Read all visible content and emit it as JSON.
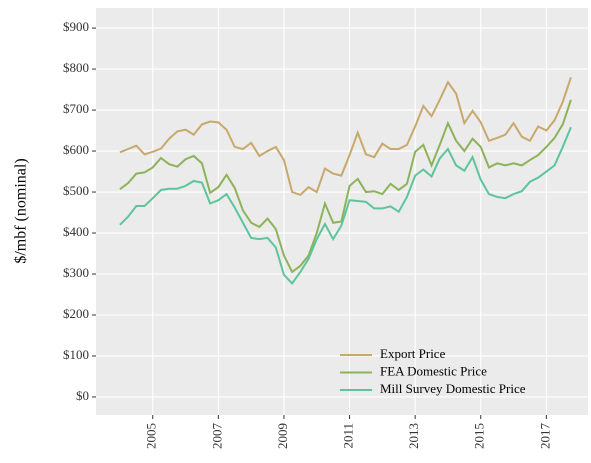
{
  "chart_data": {
    "type": "line",
    "ylabel": "$/mbf (nominal)",
    "x": [
      2004,
      2004.25,
      2004.5,
      2004.75,
      2005,
      2005.25,
      2005.5,
      2005.75,
      2006,
      2006.25,
      2006.5,
      2006.75,
      2007,
      2007.25,
      2007.5,
      2007.75,
      2008,
      2008.25,
      2008.5,
      2008.75,
      2009,
      2009.25,
      2009.5,
      2009.75,
      2010,
      2010.25,
      2010.5,
      2010.75,
      2011,
      2011.25,
      2011.5,
      2011.75,
      2012,
      2012.25,
      2012.5,
      2012.75,
      2013,
      2013.25,
      2013.5,
      2013.75,
      2014,
      2014.25,
      2014.5,
      2014.75,
      2015,
      2015.25,
      2015.5,
      2015.75,
      2016,
      2016.25,
      2016.5,
      2016.75,
      2017,
      2017.25,
      2017.5,
      2017.75
    ],
    "series": [
      {
        "name": "Export Price",
        "color": "#c9a86c",
        "values": [
          597,
          605,
          613,
          592,
          598,
          606,
          630,
          648,
          652,
          640,
          665,
          672,
          670,
          652,
          610,
          605,
          620,
          588,
          600,
          610,
          578,
          500,
          493,
          512,
          500,
          557,
          545,
          540,
          590,
          645,
          592,
          585,
          618,
          605,
          605,
          615,
          660,
          710,
          685,
          725,
          768,
          740,
          668,
          698,
          670,
          625,
          632,
          640,
          668,
          635,
          625,
          660,
          650,
          675,
          720,
          780
        ]
      },
      {
        "name": "FEA Domestic Price",
        "color": "#8db35a",
        "values": [
          507,
          522,
          545,
          548,
          560,
          583,
          568,
          562,
          580,
          588,
          570,
          498,
          512,
          542,
          510,
          455,
          425,
          415,
          435,
          410,
          345,
          305,
          320,
          345,
          400,
          472,
          425,
          428,
          515,
          532,
          500,
          502,
          495,
          520,
          505,
          520,
          598,
          615,
          565,
          615,
          668,
          625,
          600,
          630,
          610,
          560,
          570,
          565,
          570,
          565,
          578,
          590,
          610,
          632,
          665,
          725
        ]
      },
      {
        "name": "Mill Survey Domestic Price",
        "color": "#5cc59a",
        "values": [
          420,
          440,
          466,
          466,
          485,
          505,
          508,
          508,
          515,
          527,
          523,
          472,
          480,
          495,
          462,
          425,
          388,
          385,
          388,
          365,
          298,
          277,
          305,
          337,
          385,
          422,
          385,
          418,
          480,
          478,
          476,
          460,
          460,
          465,
          452,
          488,
          540,
          555,
          538,
          582,
          605,
          565,
          552,
          585,
          530,
          495,
          488,
          485,
          495,
          502,
          525,
          535,
          550,
          565,
          610,
          658
        ]
      }
    ],
    "xlim": [
      2003.27,
      2018.27
    ],
    "xticks": [
      2005,
      2007,
      2009,
      2011,
      2013,
      2015,
      2017
    ],
    "ylim": [
      -44,
      949
    ],
    "yticks": [
      {
        "value": 0,
        "label": "$0"
      },
      {
        "value": 100,
        "label": "$100"
      },
      {
        "value": 200,
        "label": "$200"
      },
      {
        "value": 300,
        "label": "$300"
      },
      {
        "value": 400,
        "label": "$400"
      },
      {
        "value": 500,
        "label": "$500"
      },
      {
        "value": 600,
        "label": "$600"
      },
      {
        "value": 700,
        "label": "$700"
      },
      {
        "value": 800,
        "label": "$800"
      },
      {
        "value": 900,
        "label": "$900"
      }
    ],
    "grid": true,
    "legend_position": "bottom-right"
  }
}
